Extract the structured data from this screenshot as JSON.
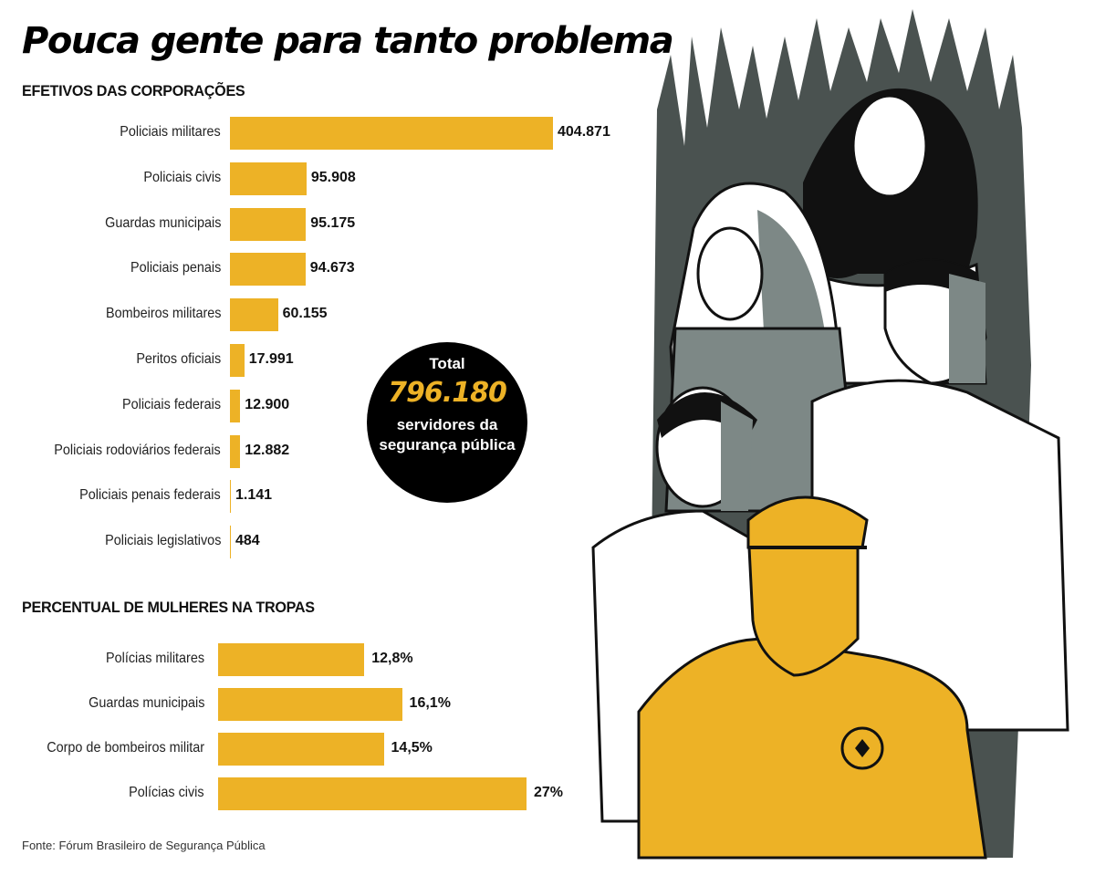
{
  "title": "Pouca gente para tanto problema",
  "chart_data": [
    {
      "type": "bar",
      "orientation": "horizontal",
      "title": "EFETIVOS DAS CORPORAÇÕES",
      "categories": [
        "Policiais militares",
        "Policiais civis",
        "Guardas municipais",
        "Policiais penais",
        "Bombeiros militares",
        "Peritos oficiais",
        "Policiais federais",
        "Policiais rodoviários federais",
        "Policiais penais federais",
        "Policiais legislativos"
      ],
      "values": [
        404871,
        95908,
        95175,
        94673,
        60155,
        17991,
        12900,
        12882,
        1141,
        484
      ],
      "labels": [
        "404.871",
        "95.908",
        "95.175",
        "94.673",
        "60.155",
        "17.991",
        "12.900",
        "12.882",
        "1.141",
        "484"
      ],
      "xlabel": "",
      "ylabel": "",
      "bar_color": "#EDB226"
    },
    {
      "type": "bar",
      "orientation": "horizontal",
      "title": "PERCENTUAL DE MULHERES NA TROPAS",
      "categories": [
        "Polícias militares",
        "Guardas municipais",
        "Corpo de bombeiros militar",
        "Polícias civis"
      ],
      "values": [
        12.8,
        16.1,
        14.5,
        27
      ],
      "labels": [
        "12,8%",
        "16,1%",
        "14,5%",
        "27%"
      ],
      "xlabel": "",
      "ylabel": "",
      "bar_color": "#EDB226"
    }
  ],
  "total": {
    "label": "Total",
    "value": "796.180",
    "caption": "servidores da segurança pública"
  },
  "source": "Fonte: Fórum Brasileiro de Segurança Pública",
  "illustration": "Illustration of public security workers: two women, three men, one in yellow uniform with badge"
}
